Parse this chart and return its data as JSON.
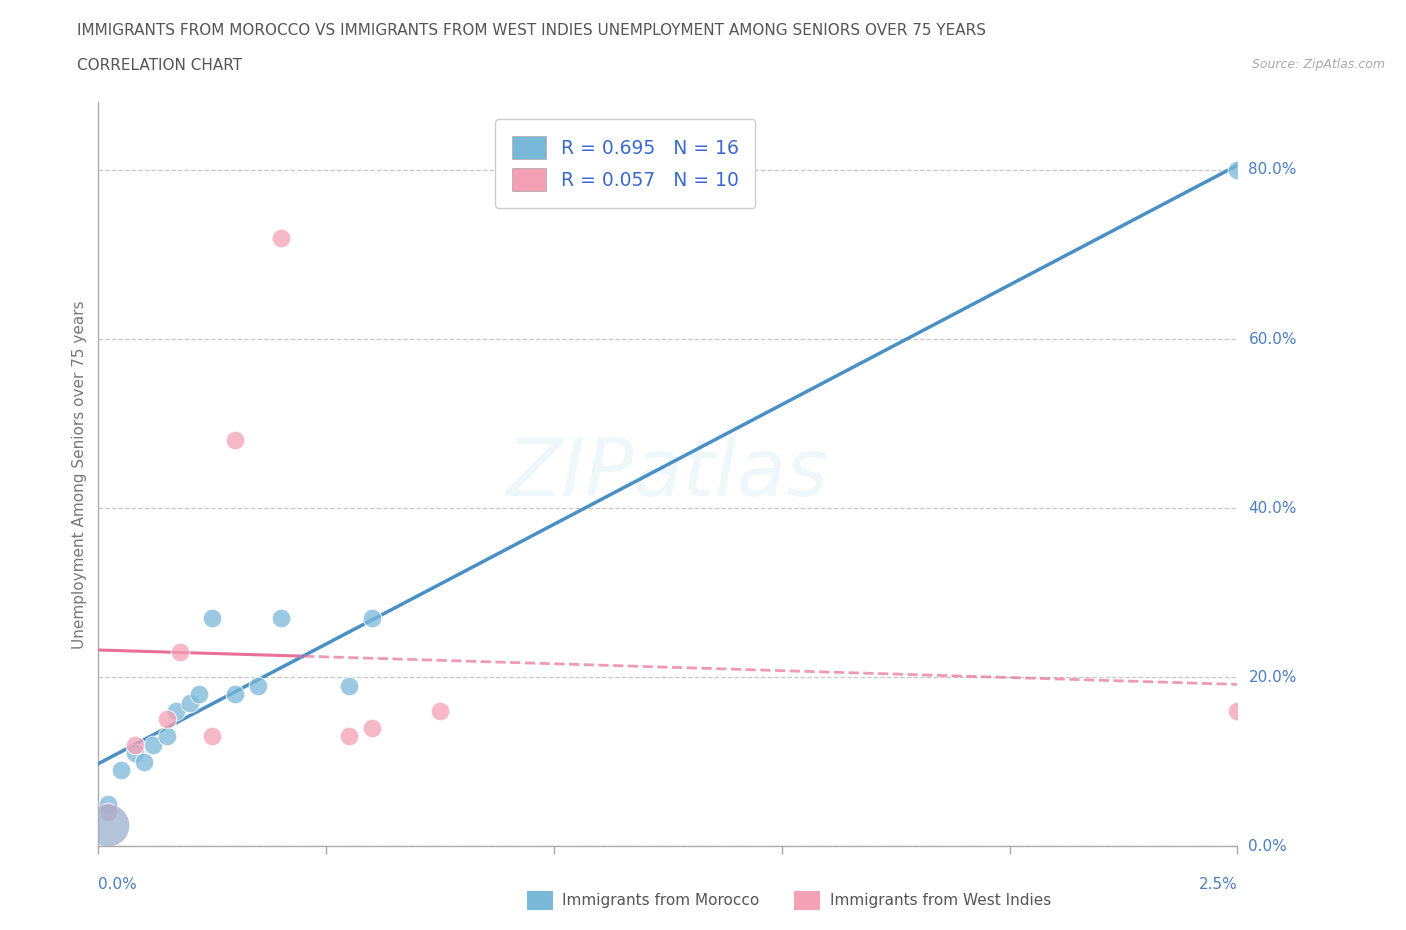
{
  "title_line1": "IMMIGRANTS FROM MOROCCO VS IMMIGRANTS FROM WEST INDIES UNEMPLOYMENT AMONG SENIORS OVER 75 YEARS",
  "title_line2": "CORRELATION CHART",
  "source": "Source: ZipAtlas.com",
  "ylabel": "Unemployment Among Seniors over 75 years",
  "morocco_color": "#7ab8d9",
  "west_indies_color": "#f4a0b5",
  "morocco_line_color": "#4a90c4",
  "west_indies_line_color": "#e87099",
  "morocco_R": "0.695",
  "morocco_N": "16",
  "west_indies_R": "0.057",
  "west_indies_N": "10",
  "legend_label_morocco": "Immigrants from Morocco",
  "legend_label_west_indies": "Immigrants from West Indies",
  "watermark": "ZIPatlas",
  "morocco_x": [
    0.02,
    0.05,
    0.08,
    0.1,
    0.12,
    0.15,
    0.17,
    0.2,
    0.22,
    0.25,
    0.3,
    0.35,
    0.4,
    0.55,
    0.6,
    2.5
  ],
  "morocco_y": [
    5.0,
    9.0,
    11.0,
    10.0,
    12.0,
    13.0,
    16.0,
    17.0,
    18.0,
    27.0,
    18.0,
    19.0,
    27.0,
    19.0,
    27.0,
    80.0
  ],
  "west_indies_x": [
    0.02,
    0.08,
    0.15,
    0.18,
    0.25,
    0.3,
    0.55,
    0.6,
    0.75,
    2.5
  ],
  "west_indies_y": [
    4.0,
    12.0,
    15.0,
    23.0,
    13.0,
    48.0,
    13.0,
    14.0,
    16.0,
    16.0
  ],
  "west_indies_high_x": [
    0.3
  ],
  "west_indies_high_y": [
    48.0
  ],
  "west_indies_outlier_x": [
    0.4
  ],
  "west_indies_outlier_y": [
    72.0
  ],
  "xlim": [
    0.0,
    2.5
  ],
  "ylim": [
    0.0,
    88.0
  ],
  "yticks": [
    0,
    20,
    40,
    60,
    80
  ],
  "ytick_labels": [
    "0.0%",
    "20.0%",
    "40.0%",
    "60.0%",
    "80.0%"
  ],
  "xtick_positions": [
    0.0,
    0.5,
    1.0,
    1.5,
    2.0,
    2.5
  ],
  "bg_color": "#ffffff",
  "grid_color": "#cccccc",
  "title_color": "#555555",
  "axis_label_color": "#777777",
  "legend_text_color": "#3a6acd",
  "tick_text_color": "#4a7fc1",
  "dashed_gridline_color": "#bbbbbb"
}
